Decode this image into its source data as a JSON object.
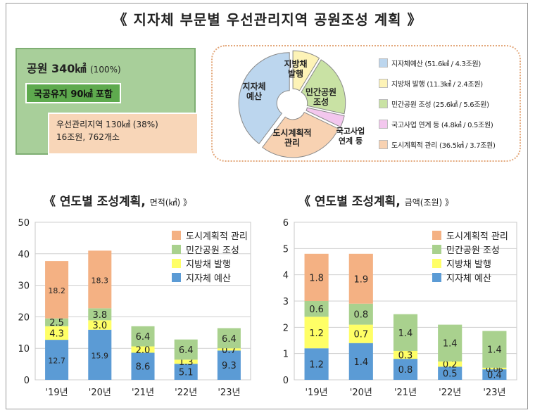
{
  "title": "《 지자체 부문별 우선관리지역 공원조성 계획 》",
  "summary": {
    "park_label": "공원 340㎢",
    "park_pct": "(100%)",
    "state_land": "국공유지 90㎢ 포함",
    "priority_line1": "우선관리지역 130㎢ (38%)",
    "priority_line2": "16조원, 762개소"
  },
  "pie": {
    "labels": {
      "local_budget": "지자체\n예산",
      "local_bond": "지방채\n발행",
      "private": "민간공원\n조성",
      "national": "국고사업\n연계 등",
      "urban": "도시계획적\n관리"
    },
    "legend": [
      {
        "text": "지자체예산 (51.6㎢ / 4.3조원)",
        "color": "#bcd6ee"
      },
      {
        "text": "지방채 발행 (11.3㎢ / 2.4조원)",
        "color": "#fdf3b7"
      },
      {
        "text": "민간공원 조성 (25.6㎢ / 5.6조원)",
        "color": "#c9e2a4"
      },
      {
        "text": "국고사업 연계 등 (4.8㎢ / 0.5조원)",
        "color": "#f3c7ee"
      },
      {
        "text": "도시계획적 관리 (36.5㎢ / 3.7조원)",
        "color": "#f8d2b2"
      }
    ]
  },
  "colors": {
    "urban": "#f4b183",
    "private": "#a9d18e",
    "bond": "#ffff66",
    "budget": "#5b9bd5"
  },
  "chart_data": [
    {
      "type": "pie",
      "categories": [
        "지자체예산",
        "지방채 발행",
        "민간공원 조성",
        "국고사업 연계 등",
        "도시계획적 관리"
      ],
      "values": [
        51.6,
        11.3,
        25.6,
        4.8,
        36.5
      ],
      "amounts": [
        4.3,
        2.4,
        5.6,
        0.5,
        3.7
      ]
    },
    {
      "type": "bar",
      "stacked": true,
      "title": "《 연도별 조성계획,",
      "title_unit": "면적(㎢) 》",
      "categories": [
        "'19년",
        "'20년",
        "'21년",
        "'22년",
        "'23년"
      ],
      "ylim": [
        0,
        50
      ],
      "yticks": [
        0,
        10,
        20,
        30,
        40,
        50
      ],
      "series": [
        {
          "name": "지자체 예산",
          "key": "budget",
          "values": [
            12.7,
            15.9,
            8.6,
            5.1,
            9.3
          ],
          "labels": [
            "12.7",
            "15.9",
            "8.6",
            "5.1",
            "9.3"
          ]
        },
        {
          "name": "지방채 발행",
          "key": "bond",
          "values": [
            4.3,
            3.0,
            2.0,
            1.3,
            0.7
          ],
          "labels": [
            "4.3",
            "3.0",
            "2.0",
            "1.3",
            "0.7"
          ]
        },
        {
          "name": "민간공원 조성",
          "key": "private",
          "values": [
            2.5,
            3.8,
            6.4,
            6.4,
            6.4
          ],
          "labels": [
            "2.5",
            "3.8",
            "6.4",
            "6.4",
            "6.4"
          ]
        },
        {
          "name": "도시계획적 관리",
          "key": "urban",
          "values": [
            18.2,
            18.3,
            0,
            0,
            0
          ],
          "labels": [
            "18.2",
            "18.3",
            "",
            "",
            ""
          ]
        }
      ],
      "grid": true,
      "legend": "top-right"
    },
    {
      "type": "bar",
      "stacked": true,
      "title": "《 연도별 조성계획,",
      "title_unit": "금액(조원) 》",
      "categories": [
        "'19년",
        "'20년",
        "'21년",
        "'22년",
        "'23년"
      ],
      "ylim": [
        0,
        6
      ],
      "yticks": [
        0,
        1,
        2,
        3,
        4,
        5,
        6
      ],
      "series": [
        {
          "name": "지자체 예산",
          "key": "budget",
          "values": [
            1.2,
            1.4,
            0.8,
            0.5,
            0.4
          ],
          "labels": [
            "1.2",
            "1.4",
            "0.8",
            "0.5",
            "0.4"
          ]
        },
        {
          "name": "지방채 발행",
          "key": "bond",
          "values": [
            1.2,
            0.7,
            0.3,
            0.2,
            0.06
          ],
          "labels": [
            "1.2",
            "0.7",
            "0.3",
            "0.2",
            "0.06"
          ]
        },
        {
          "name": "민간공원 조성",
          "key": "private",
          "values": [
            0.6,
            0.8,
            1.4,
            1.4,
            1.4
          ],
          "labels": [
            "0.6",
            "0.8",
            "1.4",
            "1.4",
            "1.4"
          ]
        },
        {
          "name": "도시계획적 관리",
          "key": "urban",
          "values": [
            1.8,
            1.9,
            0,
            0,
            0
          ],
          "labels": [
            "1.8",
            "1.9",
            "",
            "",
            ""
          ]
        }
      ],
      "grid": true,
      "legend": "top-right"
    }
  ]
}
